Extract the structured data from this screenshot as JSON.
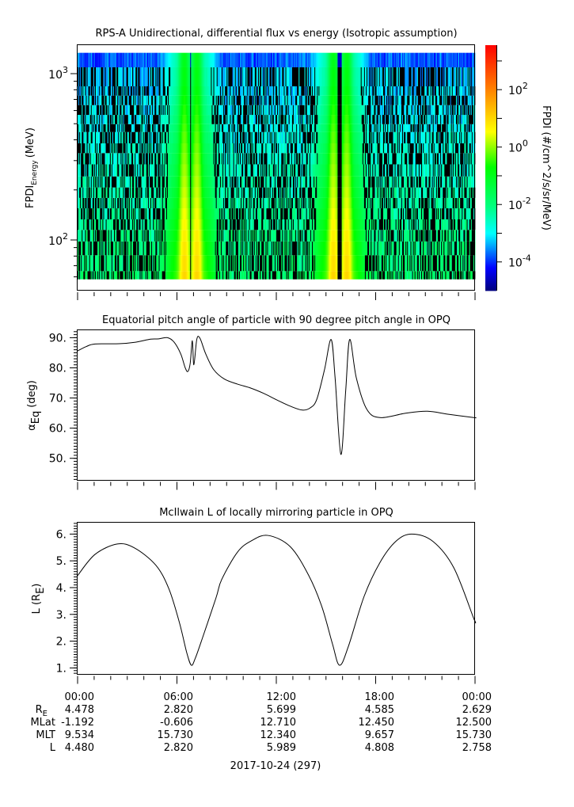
{
  "chart_data": [
    {
      "type": "heatmap",
      "title": "RPS-A Unidirectional, differential flux vs energy (Isotropic assumption)",
      "ylabel": {
        "main": "FPDI",
        "sub": "Energy",
        "unit": "(MeV)"
      },
      "yscale": "log",
      "ylim": [
        50,
        1400
      ],
      "yticks": [
        {
          "base": "10",
          "exp": "3",
          "value": 1000
        },
        {
          "base": "10",
          "exp": "2",
          "value": 100
        }
      ],
      "energy_bin_edges_mev": [
        58,
        65,
        81,
        98,
        115,
        133,
        155,
        179,
        207,
        241,
        285,
        333,
        381,
        446,
        497,
        565,
        647,
        738,
        839,
        1092,
        1334
      ],
      "time_range_hours": [
        0,
        24
      ],
      "fill_value_color": "#000000",
      "flux_features": {
        "background_log10_flux_low_energy": -1.9,
        "background_log10_flux_high_energy": -3.4,
        "peak_log10_flux_low_energy": 1.0,
        "peak_log10_flux_high_energy": -1.0,
        "bands": [
          {
            "peaks_hours": [
              6.45,
              7.2
            ],
            "gap_hours": [
              6.78,
              6.86
            ]
          },
          {
            "peaks_hours": [
              15.45,
              16.25
            ],
            "gap_hours": [
              15.7,
              15.95
            ]
          }
        ]
      },
      "colorbar": {
        "label": "FPDI (#/cm^2/s/sr/MeV)",
        "scale": "log",
        "range_log10": [
          -5.0,
          3.55
        ],
        "ticks": [
          {
            "base": "10",
            "exp": "2",
            "value": 2
          },
          {
            "base": "10",
            "exp": "0",
            "value": 0
          },
          {
            "base": "10",
            "exp": "-2",
            "value": -2
          },
          {
            "base": "10",
            "exp": "-4",
            "value": -4
          }
        ],
        "colormap": "rainbow",
        "colors": [
          "#000080",
          "#0000ff",
          "#00ffff",
          "#00ff80",
          "#00ff00",
          "#ffff00",
          "#ff8000",
          "#ff0000"
        ]
      }
    },
    {
      "type": "line",
      "title": "Equatorial pitch angle of particle with 90 degree pitch angle in OPQ",
      "ylabel": {
        "main": "α",
        "sub": "Eq",
        "unit": "(deg)"
      },
      "ylim": [
        42.7,
        92.6
      ],
      "yticks": [
        "90.",
        "80.",
        "70.",
        "60.",
        "50."
      ],
      "ytick_values": [
        90,
        80,
        70,
        60,
        50
      ],
      "x_hours": [
        0,
        0.5,
        1.05,
        2.5,
        3.5,
        4.4,
        4.88,
        5.43,
        5.83,
        6.23,
        6.5,
        6.66,
        6.8,
        6.93,
        7.02,
        7.2,
        7.39,
        7.74,
        8.22,
        8.86,
        9.66,
        10.45,
        11.25,
        12.05,
        12.84,
        13.56,
        14.04,
        14.44,
        14.91,
        15.31,
        15.55,
        15.9,
        16.19,
        16.43,
        16.83,
        17.46,
        18.26,
        19.85,
        21.13,
        22.4,
        23.92,
        24
      ],
      "y": [
        85.6,
        87.0,
        87.9,
        88.0,
        88.5,
        89.5,
        89.6,
        90.0,
        88.5,
        84.6,
        80.0,
        78.8,
        81.5,
        89.0,
        81.0,
        89.5,
        89.8,
        84.6,
        79.4,
        76.3,
        74.6,
        73.3,
        71.5,
        69.3,
        67.3,
        66.0,
        66.7,
        69.5,
        79.4,
        89.4,
        76.7,
        51.3,
        72.4,
        89.4,
        76.7,
        66.3,
        63.5,
        65.0,
        65.6,
        64.6,
        63.5,
        63.5
      ]
    },
    {
      "type": "line",
      "title": "McIlwain L of locally mirroring particle in OPQ",
      "ylabel": {
        "main": "L (R",
        "sub": "E",
        "unit": ")"
      },
      "ylim": [
        0.76,
        6.44
      ],
      "yticks": [
        "6.",
        "5.",
        "4.",
        "3.",
        "2.",
        "1."
      ],
      "ytick_values": [
        6,
        5,
        4,
        3,
        2,
        1
      ],
      "x_hours": [
        0,
        1.05,
        2.4,
        3.44,
        4.72,
        5.51,
        6.15,
        6.6,
        6.87,
        7.1,
        7.42,
        8.35,
        8.7,
        9.66,
        10.5,
        11.49,
        12.84,
        13.96,
        14.76,
        15.39,
        15.82,
        16.35,
        17.3,
        18.26,
        19.22,
        20.17,
        21.45,
        22.72,
        23.92,
        24
      ],
      "y": [
        4.45,
        5.24,
        5.63,
        5.48,
        4.84,
        3.96,
        2.69,
        1.55,
        1.1,
        1.35,
        1.9,
        3.6,
        4.3,
        5.33,
        5.75,
        5.95,
        5.53,
        4.45,
        3.27,
        1.9,
        1.1,
        1.8,
        3.67,
        4.94,
        5.73,
        6.0,
        5.73,
        4.74,
        2.85,
        2.758
      ]
    }
  ],
  "xaxis": {
    "tick_labels": [
      "00:00",
      "06:00",
      "12:00",
      "18:00",
      "00:00"
    ],
    "rows": [
      {
        "label_main": "R",
        "label_sub": "E",
        "values": [
          "4.478",
          "2.820",
          "5.699",
          "4.585",
          "2.629"
        ]
      },
      {
        "label_main": "MLat",
        "label_sub": "",
        "values": [
          "-1.192",
          "-0.606",
          "12.710",
          "12.450",
          "12.500"
        ]
      },
      {
        "label_main": "MLT",
        "label_sub": "",
        "values": [
          "9.534",
          "15.730",
          "12.340",
          "9.657",
          "15.730"
        ]
      },
      {
        "label_main": "L",
        "label_sub": "",
        "values": [
          "4.480",
          "2.820",
          "5.989",
          "4.808",
          "2.758"
        ]
      }
    ],
    "date_label": "2017-10-24 (297)"
  }
}
